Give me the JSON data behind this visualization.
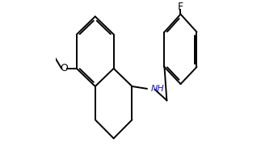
{
  "bg_color": "#ffffff",
  "line_color": "#000000",
  "text_color": "#000000",
  "label_F": "F",
  "label_O": "O",
  "label_NH": "NH",
  "figsize": [
    3.23,
    1.92
  ],
  "dpi": 100,
  "lw": 1.4,
  "r": 0.108
}
